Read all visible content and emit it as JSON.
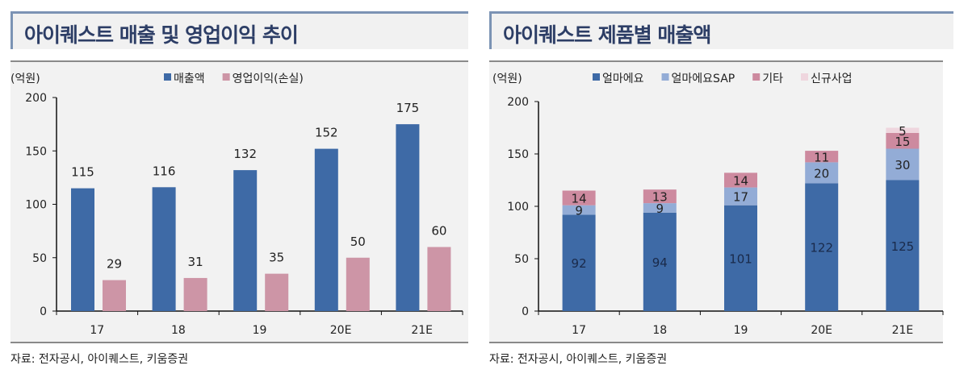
{
  "chart_data": [
    {
      "type": "bar",
      "title": "아이퀘스트 매출 및 영업이익 추이",
      "unit_label": "(억원)",
      "categories": [
        "17",
        "18",
        "19",
        "20E",
        "21E"
      ],
      "series": [
        {
          "name": "매출액",
          "values": [
            115,
            116,
            132,
            152,
            175
          ],
          "color": "#3e6aa6"
        },
        {
          "name": "영업이익(손실)",
          "values": [
            29,
            31,
            35,
            50,
            60
          ],
          "color": "#cd95a6"
        }
      ],
      "yticks": [
        0,
        50,
        100,
        150,
        200
      ],
      "ylim": [
        0,
        200
      ],
      "legend": "top",
      "source": "자료: 전자공시, 아이퀘스트, 키움증권"
    },
    {
      "type": "stacked-bar",
      "title": "아이퀘스트 제품별 매출액",
      "unit_label": "(억원)",
      "categories": [
        "17",
        "18",
        "19",
        "20E",
        "21E"
      ],
      "series": [
        {
          "name": "얼마에요",
          "values": [
            92,
            94,
            101,
            122,
            125
          ],
          "color": "#3e6aa6"
        },
        {
          "name": "얼마에요SAP",
          "values": [
            9,
            9,
            17,
            20,
            30
          ],
          "color": "#93acd6"
        },
        {
          "name": "기타",
          "values": [
            14,
            13,
            14,
            11,
            15
          ],
          "color": "#cd8a9f"
        },
        {
          "name": "신규사업",
          "values": [
            0,
            0,
            0,
            0,
            5
          ],
          "color": "#efd6de"
        }
      ],
      "yticks": [
        0,
        50,
        100,
        150,
        200
      ],
      "ylim": [
        0,
        200
      ],
      "legend": "top",
      "source": "자료: 전자공시, 아이퀘스트, 키움증권"
    }
  ]
}
